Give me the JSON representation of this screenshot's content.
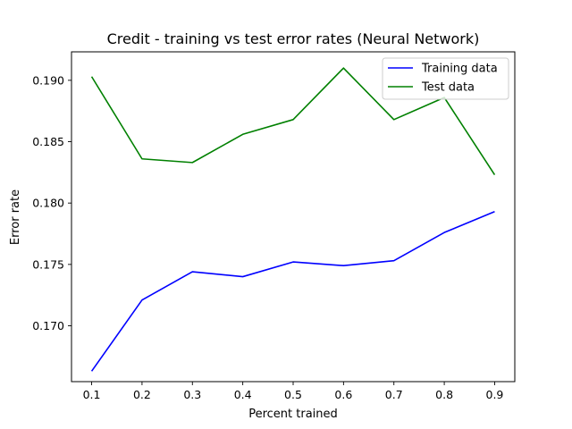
{
  "chart_data": {
    "type": "line",
    "title": "Credit - training vs test error rates (Neural Network)",
    "xlabel": "Percent trained",
    "ylabel": "Error rate",
    "x": [
      0.1,
      0.2,
      0.3,
      0.4,
      0.5,
      0.6,
      0.7,
      0.8,
      0.9
    ],
    "xticks": [
      "0.1",
      "0.2",
      "0.3",
      "0.4",
      "0.5",
      "0.6",
      "0.7",
      "0.8",
      "0.9"
    ],
    "yticks": [
      "0.170",
      "0.175",
      "0.180",
      "0.185",
      "0.190"
    ],
    "ytick_values": [
      0.17,
      0.175,
      0.18,
      0.185,
      0.19
    ],
    "xlim": [
      0.06,
      0.94
    ],
    "ylim": [
      0.16545,
      0.19232
    ],
    "grid": false,
    "legend_position": "upper right",
    "series": [
      {
        "name": "Training data",
        "color": "#0000ff",
        "values": [
          0.1663,
          0.1721,
          0.1744,
          0.174,
          0.1752,
          0.1749,
          0.1753,
          0.1776,
          0.1793
        ]
      },
      {
        "name": "Test data",
        "color": "#008000",
        "values": [
          0.1903,
          0.1836,
          0.1833,
          0.1856,
          0.1868,
          0.191,
          0.1868,
          0.1886,
          0.1823
        ]
      }
    ]
  }
}
